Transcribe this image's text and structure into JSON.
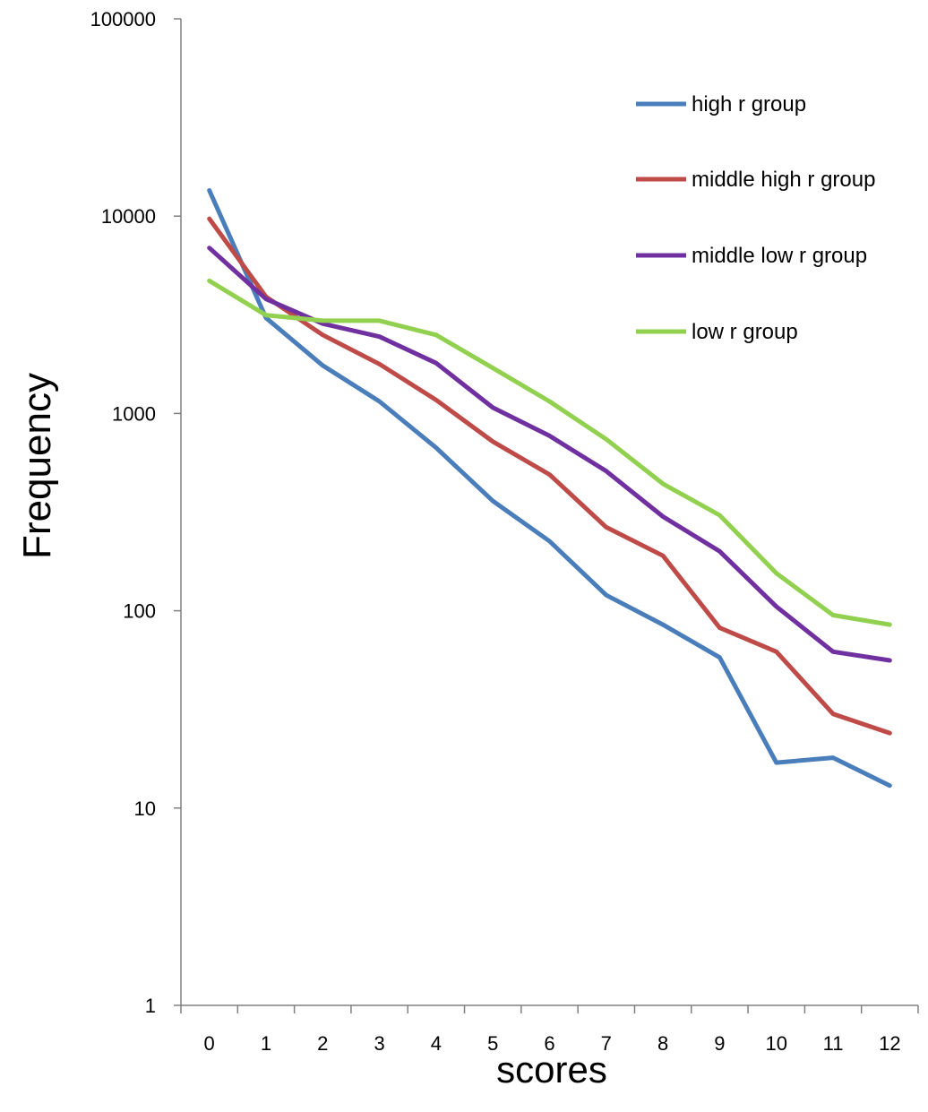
{
  "chart_data": {
    "type": "line",
    "title": "",
    "xlabel": "scores",
    "ylabel": "Frequency",
    "y_scale": "log",
    "ylim": [
      1,
      100000
    ],
    "xlim": [
      -0.5,
      12.5
    ],
    "x": [
      0,
      1,
      2,
      3,
      4,
      5,
      6,
      7,
      8,
      9,
      10,
      11,
      12
    ],
    "x_tick_labels": [
      "0",
      "1",
      "2",
      "3",
      "4",
      "5",
      "6",
      "7",
      "8",
      "9",
      "10",
      "11",
      "12"
    ],
    "y_tick_labels": [
      "1",
      "10",
      "100",
      "1000",
      "10000",
      "100000"
    ],
    "y_ticks": [
      1,
      10,
      100,
      1000,
      10000,
      100000
    ],
    "grid": false,
    "legend_position": "top-right",
    "series": [
      {
        "name": "high r group",
        "color": "#4a7ebb",
        "values": [
          13500,
          3050,
          1750,
          1150,
          670,
          360,
          225,
          120,
          85,
          58,
          17,
          18,
          13
        ]
      },
      {
        "name": "middle high r group",
        "color": "#be4b48",
        "values": [
          9700,
          3900,
          2500,
          1780,
          1170,
          720,
          490,
          265,
          190,
          82,
          62,
          30,
          24
        ]
      },
      {
        "name": "middle low r group",
        "color": "#7030a0",
        "values": [
          6900,
          3800,
          2850,
          2450,
          1800,
          1070,
          770,
          510,
          300,
          200,
          105,
          62,
          56
        ]
      },
      {
        "name": "low r group",
        "color": "#92d050",
        "values": [
          4700,
          3150,
          2950,
          2950,
          2500,
          1700,
          1150,
          740,
          440,
          305,
          155,
          95,
          85
        ]
      }
    ]
  }
}
